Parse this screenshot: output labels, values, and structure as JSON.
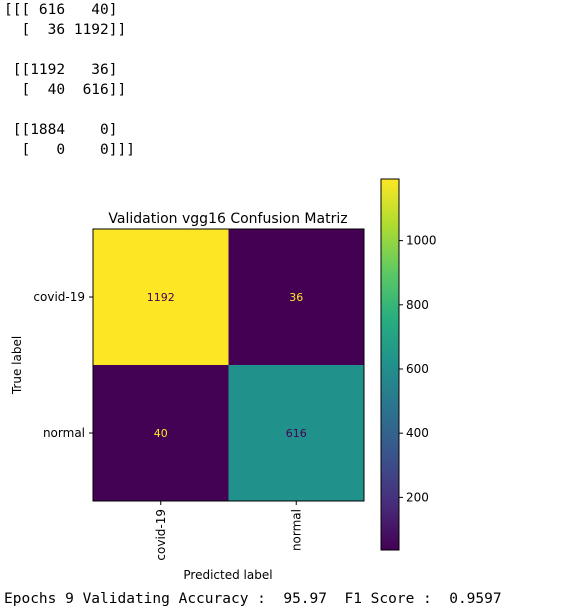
{
  "console_output": {
    "lines": [
      "[[[ 616   40]",
      "  [  36 1192]]",
      "",
      " [[1192   36]",
      "  [  40  616]]",
      "",
      " [[1884    0]",
      "  [   0    0]]]"
    ]
  },
  "footer": {
    "text": "Epochs 9 Validating Accuracy :  95.97  F1 Score :  0.9597"
  },
  "chart_data": {
    "type": "heatmap",
    "title": "Validation vgg16 Confusion Matriz",
    "xlabel": "Predicted label",
    "ylabel": "True label",
    "x_categories": [
      "covid-19",
      "normal"
    ],
    "y_categories": [
      "covid-19",
      "normal"
    ],
    "values": [
      [
        1192,
        36
      ],
      [
        40,
        616
      ]
    ],
    "colormap": "viridis",
    "colorbar": {
      "ticks": [
        200,
        400,
        600,
        800,
        1000
      ],
      "range": [
        36,
        1192
      ]
    },
    "colors": {
      "low": "#440154",
      "mid": "#21918c",
      "high": "#fde725",
      "text_on_dark": "#fde725",
      "text_on_light": "#440154"
    }
  }
}
